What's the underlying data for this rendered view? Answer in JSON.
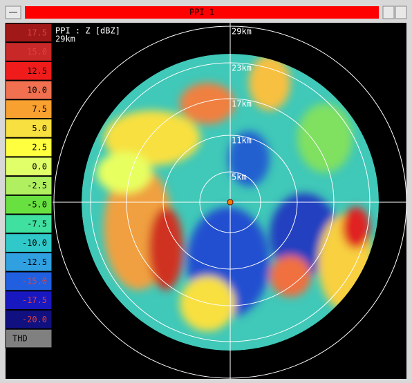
{
  "window": {
    "title": "PPI 1"
  },
  "legend": {
    "items": [
      {
        "label": "17.5",
        "color": "#a01818"
      },
      {
        "label": "15.0",
        "color": "#c82828"
      },
      {
        "label": "12.5",
        "color": "#f01c1c"
      },
      {
        "label": "10.0",
        "color": "#f07050"
      },
      {
        "label": "7.5",
        "color": "#f8a030"
      },
      {
        "label": "5.0",
        "color": "#f8e040"
      },
      {
        "label": "2.5",
        "color": "#ffff40"
      },
      {
        "label": "0.0",
        "color": "#e0ff68"
      },
      {
        "label": "-2.5",
        "color": "#b0f060"
      },
      {
        "label": "-5.0",
        "color": "#68e040"
      },
      {
        "label": "-7.5",
        "color": "#40e0a0"
      },
      {
        "label": "-10.0",
        "color": "#30c8c8"
      },
      {
        "label": "-12.5",
        "color": "#30a0e0"
      },
      {
        "label": "-15.0",
        "color": "#2060e0"
      },
      {
        "label": "-17.5",
        "color": "#1818c0"
      },
      {
        "label": "-20.0",
        "color": "#101080"
      },
      {
        "label": "THD",
        "color": "#808080"
      }
    ]
  },
  "display": {
    "product": "PPI : Z [dBZ]",
    "max_range": "29km",
    "ring_labels": [
      "29km",
      "23km",
      "17km",
      "11km",
      "5km"
    ]
  }
}
